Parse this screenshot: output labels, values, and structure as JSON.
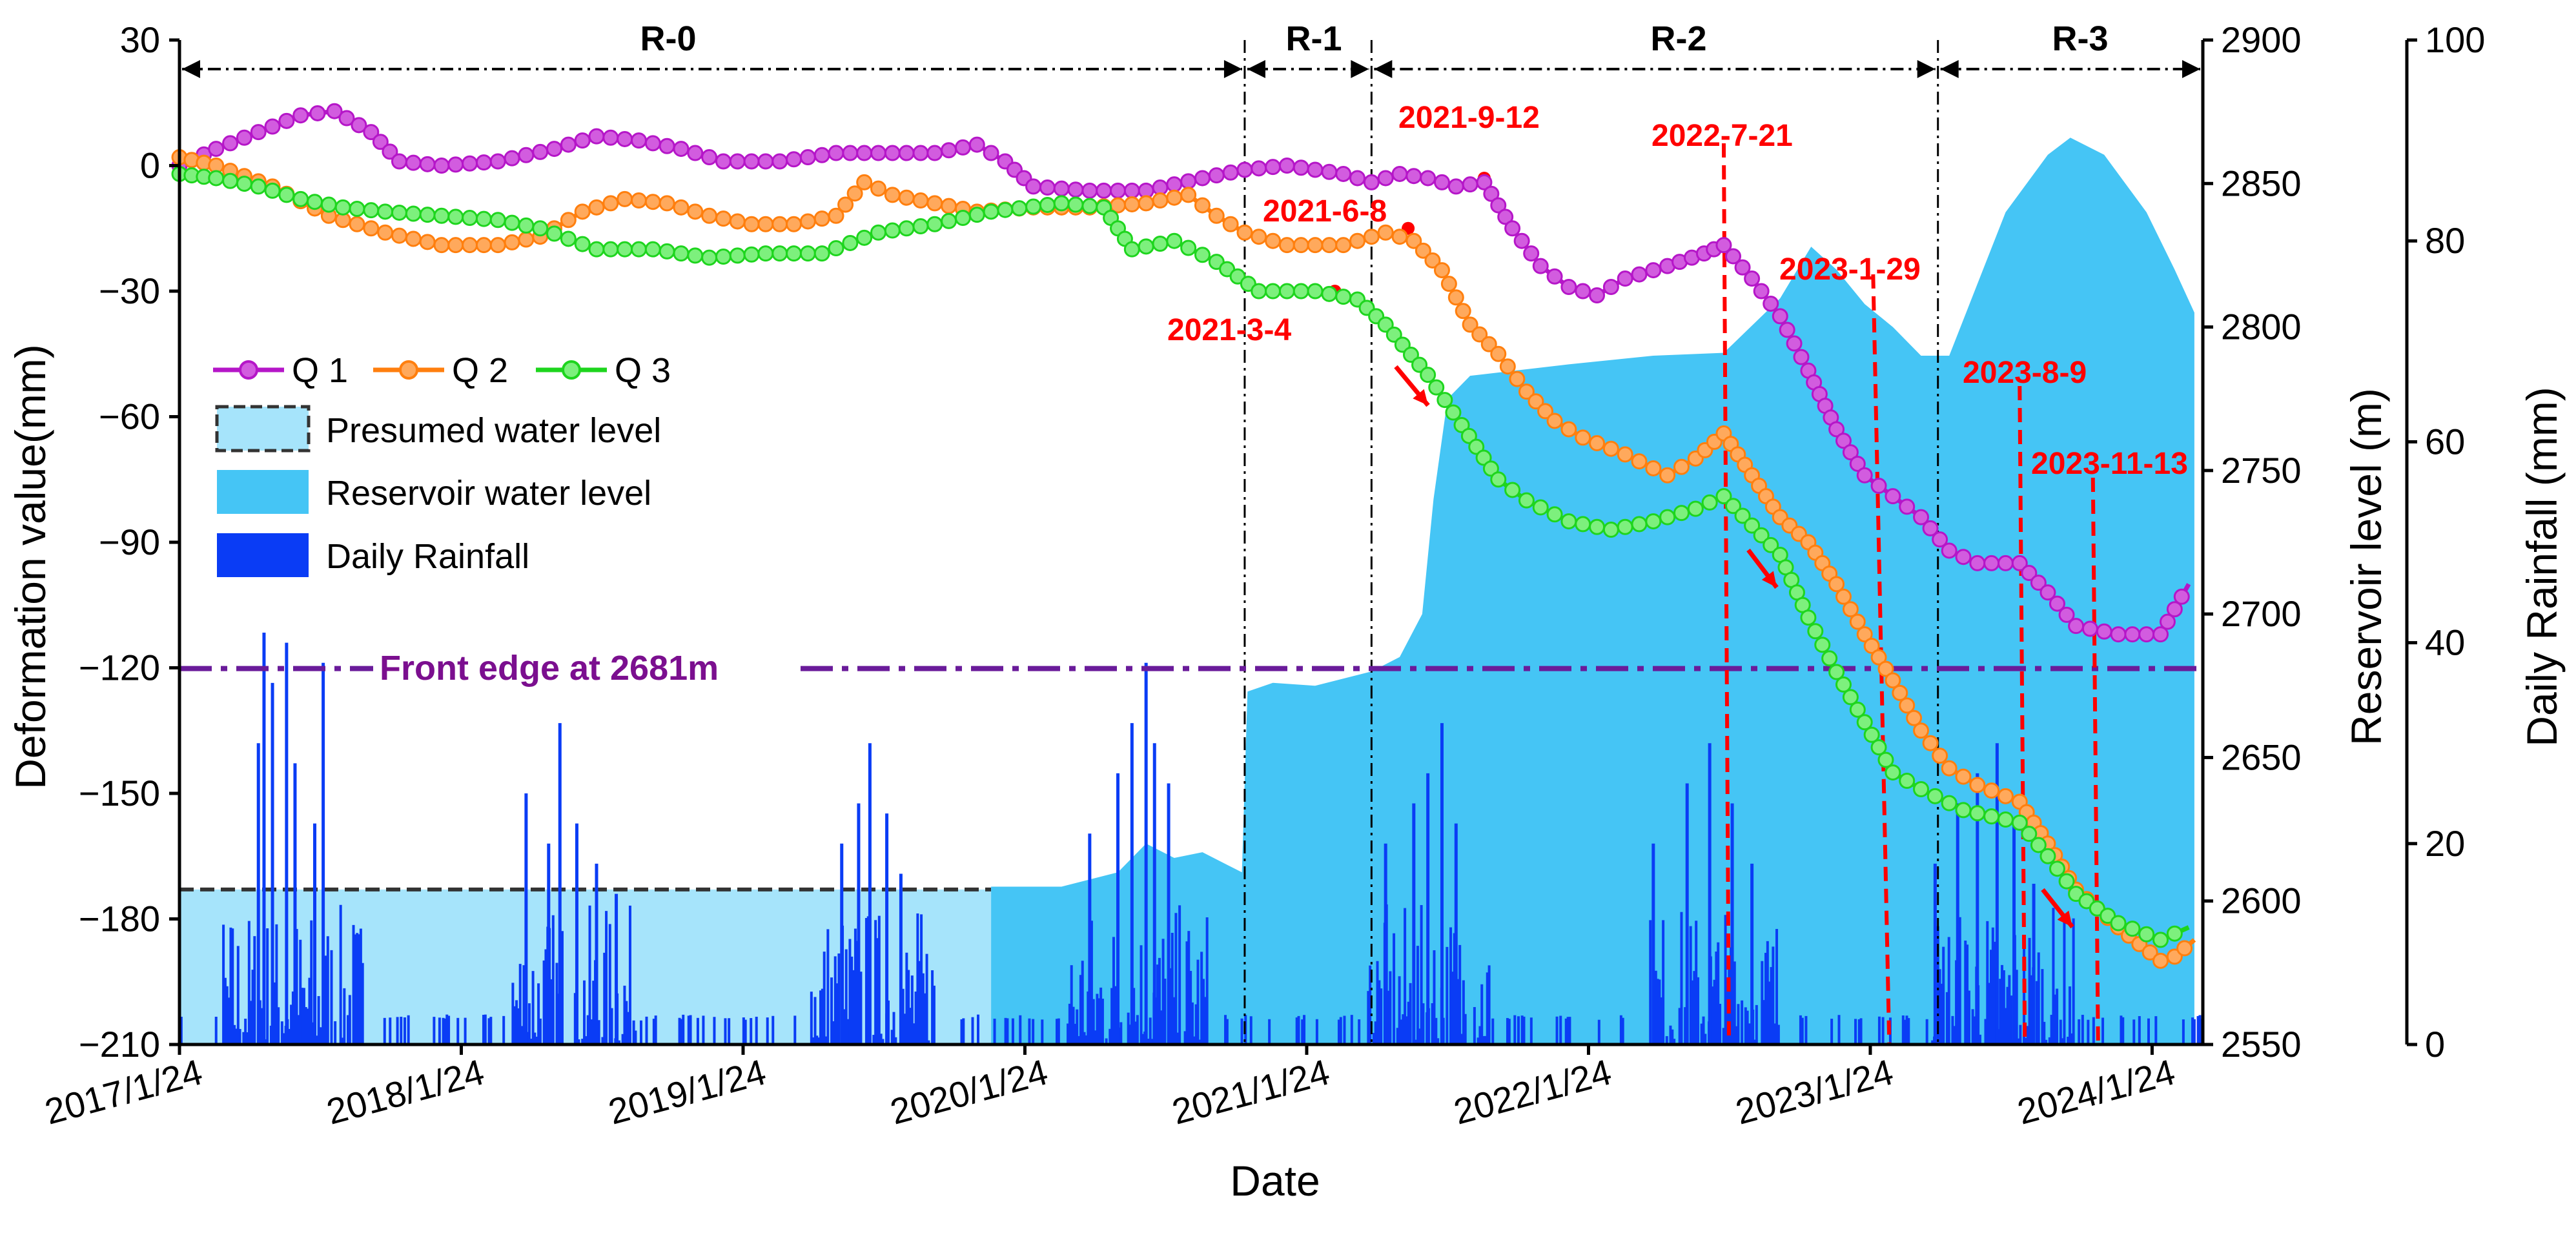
{
  "chart_data": {
    "type": "line",
    "title": "",
    "xlabel": "Date",
    "ylabel": "Deformation value(mm)",
    "y2label": "Reservoir level (m)",
    "y3label": "Daily Rainfall  (mm)",
    "x_ticks": [
      "2017/1/24",
      "2018/1/24",
      "2019/1/24",
      "2020/1/24",
      "2021/1/24",
      "2022/1/24",
      "2023/1/24",
      "2024/1/24"
    ],
    "ylim": [
      -210,
      30
    ],
    "y_ticks": [
      30,
      0,
      -30,
      -60,
      -90,
      -120,
      -150,
      -180,
      -210
    ],
    "y2lim": [
      2550,
      2900
    ],
    "y2_ticks": [
      2900,
      2850,
      2800,
      2750,
      2700,
      2650,
      2600,
      2550
    ],
    "y3lim": [
      0,
      100
    ],
    "y3_ticks": [
      100,
      80,
      60,
      40,
      20,
      0
    ],
    "x_range_years": [
      2017.07,
      2024.25
    ],
    "regions": [
      {
        "label": "R-0",
        "start": 2017.07,
        "end": 2020.85
      },
      {
        "label": "R-1",
        "start": 2020.85,
        "end": 2021.3
      },
      {
        "label": "R-2",
        "start": 2021.3,
        "end": 2023.31
      },
      {
        "label": "R-3",
        "start": 2023.31,
        "end": 2024.25
      }
    ],
    "front_edge": {
      "label": "Front edge at 2681m",
      "value": 2681
    },
    "annotations": [
      {
        "label": "2021-3-4",
        "date": 2021.17
      },
      {
        "label": "2021-6-8",
        "date": 2021.43
      },
      {
        "label": "2021-9-12",
        "date": 2021.7
      },
      {
        "label": "2022-7-21",
        "date": 2022.55
      },
      {
        "label": "2023-1-29",
        "date": 2023.08
      },
      {
        "label": "2023-8-9",
        "date": 2023.6
      },
      {
        "label": "2023-11-13",
        "date": 2023.86
      }
    ],
    "legend": [
      {
        "name": "Q 1",
        "color": "#b516c8"
      },
      {
        "name": "Q 2",
        "color": "#ff7f0e"
      },
      {
        "name": "Q 3",
        "color": "#1ed51e"
      },
      {
        "name": "Presumed water level",
        "color": "#a6e4fb"
      },
      {
        "name": "Reservoir water level",
        "color": "#45c5f5"
      },
      {
        "name": "Daily Rainfall",
        "color": "#0a3cf5"
      }
    ],
    "series": [
      {
        "name": "Q 1",
        "color": "#b516c8",
        "points": [
          [
            2017.07,
            0
          ],
          [
            2017.2,
            4
          ],
          [
            2017.35,
            8
          ],
          [
            2017.5,
            12
          ],
          [
            2017.62,
            13
          ],
          [
            2017.75,
            8
          ],
          [
            2017.85,
            1
          ],
          [
            2018.0,
            0
          ],
          [
            2018.2,
            1
          ],
          [
            2018.4,
            4
          ],
          [
            2018.55,
            7
          ],
          [
            2018.7,
            6
          ],
          [
            2018.85,
            4
          ],
          [
            2019.0,
            1
          ],
          [
            2019.2,
            1
          ],
          [
            2019.4,
            3
          ],
          [
            2019.6,
            3
          ],
          [
            2019.75,
            3
          ],
          [
            2019.9,
            5
          ],
          [
            2020.0,
            1
          ],
          [
            2020.1,
            -5
          ],
          [
            2020.3,
            -6
          ],
          [
            2020.5,
            -6
          ],
          [
            2020.7,
            -3
          ],
          [
            2020.85,
            -1
          ],
          [
            2021.0,
            0
          ],
          [
            2021.2,
            -2
          ],
          [
            2021.3,
            -4
          ],
          [
            2021.4,
            -2
          ],
          [
            2021.5,
            -3
          ],
          [
            2021.6,
            -5
          ],
          [
            2021.7,
            -4
          ],
          [
            2021.8,
            -15
          ],
          [
            2021.9,
            -24
          ],
          [
            2022.0,
            -29
          ],
          [
            2022.1,
            -31
          ],
          [
            2022.2,
            -27
          ],
          [
            2022.35,
            -24
          ],
          [
            2022.48,
            -21
          ],
          [
            2022.55,
            -19
          ],
          [
            2022.65,
            -27
          ],
          [
            2022.75,
            -36
          ],
          [
            2022.85,
            -49
          ],
          [
            2022.95,
            -63
          ],
          [
            2023.05,
            -74
          ],
          [
            2023.15,
            -79
          ],
          [
            2023.25,
            -84
          ],
          [
            2023.35,
            -92
          ],
          [
            2023.45,
            -95
          ],
          [
            2023.6,
            -95
          ],
          [
            2023.7,
            -102
          ],
          [
            2023.8,
            -110
          ],
          [
            2023.95,
            -112
          ],
          [
            2024.1,
            -112
          ],
          [
            2024.2,
            -100
          ]
        ]
      },
      {
        "name": "Q 2",
        "color": "#ff7f0e",
        "points": [
          [
            2017.07,
            2
          ],
          [
            2017.2,
            0
          ],
          [
            2017.4,
            -5
          ],
          [
            2017.6,
            -12
          ],
          [
            2017.8,
            -16
          ],
          [
            2018.0,
            -19
          ],
          [
            2018.2,
            -19
          ],
          [
            2018.35,
            -17
          ],
          [
            2018.5,
            -11
          ],
          [
            2018.65,
            -8
          ],
          [
            2018.8,
            -9
          ],
          [
            2018.95,
            -12
          ],
          [
            2019.1,
            -14
          ],
          [
            2019.25,
            -14
          ],
          [
            2019.4,
            -12
          ],
          [
            2019.5,
            -4
          ],
          [
            2019.6,
            -7
          ],
          [
            2019.75,
            -9
          ],
          [
            2019.9,
            -11
          ],
          [
            2020.1,
            -10
          ],
          [
            2020.3,
            -10
          ],
          [
            2020.5,
            -9
          ],
          [
            2020.65,
            -7
          ],
          [
            2020.75,
            -12
          ],
          [
            2020.85,
            -16
          ],
          [
            2021.0,
            -19
          ],
          [
            2021.2,
            -19
          ],
          [
            2021.35,
            -16
          ],
          [
            2021.45,
            -18
          ],
          [
            2021.55,
            -25
          ],
          [
            2021.65,
            -38
          ],
          [
            2021.75,
            -45
          ],
          [
            2021.85,
            -54
          ],
          [
            2021.95,
            -61
          ],
          [
            2022.05,
            -65
          ],
          [
            2022.2,
            -69
          ],
          [
            2022.35,
            -74
          ],
          [
            2022.45,
            -70
          ],
          [
            2022.55,
            -64
          ],
          [
            2022.65,
            -74
          ],
          [
            2022.75,
            -84
          ],
          [
            2022.85,
            -90
          ],
          [
            2022.95,
            -100
          ],
          [
            2023.05,
            -112
          ],
          [
            2023.15,
            -123
          ],
          [
            2023.25,
            -135
          ],
          [
            2023.35,
            -144
          ],
          [
            2023.45,
            -148
          ],
          [
            2023.6,
            -152
          ],
          [
            2023.7,
            -162
          ],
          [
            2023.8,
            -173
          ],
          [
            2023.95,
            -182
          ],
          [
            2024.1,
            -190
          ],
          [
            2024.15,
            -189
          ],
          [
            2024.22,
            -185
          ]
        ]
      },
      {
        "name": "Q 3",
        "color": "#1ed51e",
        "points": [
          [
            2017.07,
            -2
          ],
          [
            2017.2,
            -3
          ],
          [
            2017.35,
            -5
          ],
          [
            2017.5,
            -8
          ],
          [
            2017.65,
            -10
          ],
          [
            2017.8,
            -11
          ],
          [
            2018.0,
            -12
          ],
          [
            2018.2,
            -13
          ],
          [
            2018.35,
            -15
          ],
          [
            2018.55,
            -20
          ],
          [
            2018.75,
            -20
          ],
          [
            2018.95,
            -22
          ],
          [
            2019.15,
            -21
          ],
          [
            2019.35,
            -21
          ],
          [
            2019.55,
            -16
          ],
          [
            2019.75,
            -14
          ],
          [
            2019.95,
            -11
          ],
          [
            2020.2,
            -9
          ],
          [
            2020.35,
            -10
          ],
          [
            2020.45,
            -20
          ],
          [
            2020.6,
            -18
          ],
          [
            2020.75,
            -23
          ],
          [
            2020.9,
            -30
          ],
          [
            2021.1,
            -30
          ],
          [
            2021.25,
            -32
          ],
          [
            2021.35,
            -38
          ],
          [
            2021.5,
            -50
          ],
          [
            2021.62,
            -62
          ],
          [
            2021.75,
            -75
          ],
          [
            2021.85,
            -80
          ],
          [
            2022.0,
            -85
          ],
          [
            2022.15,
            -87
          ],
          [
            2022.3,
            -85
          ],
          [
            2022.45,
            -82
          ],
          [
            2022.55,
            -79
          ],
          [
            2022.65,
            -86
          ],
          [
            2022.75,
            -93
          ],
          [
            2022.85,
            -108
          ],
          [
            2022.95,
            -121
          ],
          [
            2023.05,
            -133
          ],
          [
            2023.15,
            -145
          ],
          [
            2023.25,
            -149
          ],
          [
            2023.4,
            -154
          ],
          [
            2023.6,
            -157
          ],
          [
            2023.7,
            -165
          ],
          [
            2023.8,
            -174
          ],
          [
            2023.95,
            -181
          ],
          [
            2024.1,
            -185
          ],
          [
            2024.2,
            -182
          ]
        ]
      }
    ],
    "presumed_water_level": {
      "start": 2017.07,
      "end": 2019.95,
      "level": 2604
    },
    "reservoir_water_level": [
      [
        2019.95,
        2605
      ],
      [
        2020.2,
        2605
      ],
      [
        2020.4,
        2610
      ],
      [
        2020.5,
        2620
      ],
      [
        2020.6,
        2615
      ],
      [
        2020.7,
        2617
      ],
      [
        2020.8,
        2612
      ],
      [
        2020.84,
        2610
      ],
      [
        2020.86,
        2673
      ],
      [
        2020.95,
        2676
      ],
      [
        2021.1,
        2675
      ],
      [
        2021.3,
        2680
      ],
      [
        2021.4,
        2685
      ],
      [
        2021.48,
        2700
      ],
      [
        2021.52,
        2740
      ],
      [
        2021.57,
        2775
      ],
      [
        2021.65,
        2783
      ],
      [
        2022.0,
        2787
      ],
      [
        2022.3,
        2790
      ],
      [
        2022.55,
        2791
      ],
      [
        2022.75,
        2810
      ],
      [
        2022.86,
        2828
      ],
      [
        2022.95,
        2820
      ],
      [
        2023.05,
        2808
      ],
      [
        2023.15,
        2800
      ],
      [
        2023.25,
        2790
      ],
      [
        2023.35,
        2790
      ],
      [
        2023.45,
        2815
      ],
      [
        2023.55,
        2840
      ],
      [
        2023.7,
        2860
      ],
      [
        2023.78,
        2866
      ],
      [
        2023.9,
        2860
      ],
      [
        2024.05,
        2840
      ],
      [
        2024.15,
        2820
      ],
      [
        2024.22,
        2805
      ]
    ],
    "rainfall_peaks": [
      [
        2017.35,
        30
      ],
      [
        2017.37,
        41
      ],
      [
        2017.4,
        36
      ],
      [
        2017.45,
        40
      ],
      [
        2017.48,
        28
      ],
      [
        2017.55,
        22
      ],
      [
        2017.58,
        38
      ],
      [
        2018.3,
        25
      ],
      [
        2018.38,
        20
      ],
      [
        2018.42,
        32
      ],
      [
        2018.48,
        22
      ],
      [
        2018.55,
        18
      ],
      [
        2018.62,
        15
      ],
      [
        2019.42,
        20
      ],
      [
        2019.48,
        24
      ],
      [
        2019.52,
        30
      ],
      [
        2019.58,
        23
      ],
      [
        2019.63,
        17
      ],
      [
        2020.3,
        21
      ],
      [
        2020.4,
        27
      ],
      [
        2020.45,
        32
      ],
      [
        2020.5,
        38
      ],
      [
        2020.53,
        30
      ],
      [
        2020.58,
        26
      ],
      [
        2021.35,
        20
      ],
      [
        2021.45,
        24
      ],
      [
        2021.5,
        27
      ],
      [
        2021.55,
        32
      ],
      [
        2021.6,
        22
      ],
      [
        2022.3,
        20
      ],
      [
        2022.42,
        26
      ],
      [
        2022.5,
        30
      ],
      [
        2022.58,
        24
      ],
      [
        2022.65,
        18
      ],
      [
        2023.3,
        18
      ],
      [
        2023.38,
        24
      ],
      [
        2023.45,
        27
      ],
      [
        2023.52,
        30
      ],
      [
        2023.58,
        22
      ],
      [
        2023.65,
        16
      ]
    ]
  }
}
